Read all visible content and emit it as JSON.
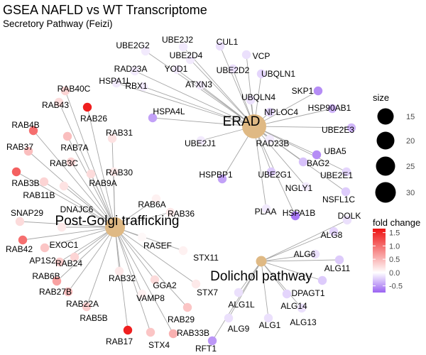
{
  "title": "GSEA NAFLD vs WT Transcriptome",
  "subtitle": "Secretory Pathway (Feizi)",
  "legend": {
    "size_title": "size",
    "size_values": [
      15,
      20,
      25,
      30
    ],
    "color_title": "fold change",
    "color_ticks": [
      1.5,
      1.0,
      0.5,
      0.0,
      -0.5
    ],
    "color_tick_labels": [
      "1.5",
      "1.0",
      "0.5",
      "0.0",
      "-0.5"
    ],
    "color_range": [
      -0.75,
      1.65
    ],
    "colors": {
      "low": "#9a63f2",
      "mid": "#ffffff",
      "high": "#ee1111"
    }
  },
  "chart_data": {
    "type": "network",
    "hubs": [
      {
        "id": "ERAD",
        "label": "ERAD",
        "size": 25,
        "color": "#dfb984"
      },
      {
        "id": "PGT",
        "label": "Post-Golgi trafficking",
        "size": 22,
        "color": "#dfb984"
      },
      {
        "id": "DOL",
        "label": "Dolichol pathway",
        "size": 14,
        "color": "#dfb984"
      }
    ],
    "genes": [
      {
        "label": "UBE2G2",
        "hub": "ERAD",
        "fc": -0.1
      },
      {
        "label": "UBE2J2",
        "hub": "ERAD",
        "fc": -0.1
      },
      {
        "label": "CUL1",
        "hub": "ERAD",
        "fc": -0.15
      },
      {
        "label": "UBE2D4",
        "hub": "ERAD",
        "fc": -0.1
      },
      {
        "label": "VCP",
        "hub": "ERAD",
        "fc": -0.15
      },
      {
        "label": "YOD1",
        "hub": "ERAD",
        "fc": -0.1
      },
      {
        "label": "UBE2D2",
        "hub": "ERAD",
        "fc": -0.15
      },
      {
        "label": "UBQLN1",
        "hub": "ERAD",
        "fc": -0.2
      },
      {
        "label": "RAD23A",
        "hub": "ERAD",
        "fc": -0.1
      },
      {
        "label": "HSPA1L",
        "hub": "ERAD",
        "fc": -0.1
      },
      {
        "label": "RBX1",
        "hub": "ERAD",
        "fc": -0.1
      },
      {
        "label": "ATXN3",
        "hub": "ERAD",
        "fc": -0.1
      },
      {
        "label": "UBQLN4",
        "hub": "ERAD",
        "fc": -0.15
      },
      {
        "label": "SKP1",
        "hub": "ERAD",
        "fc": -0.55
      },
      {
        "label": "HSPA4L",
        "hub": "ERAD",
        "fc": -0.45
      },
      {
        "label": "NPLOC4",
        "hub": "ERAD",
        "fc": -0.2
      },
      {
        "label": "HSP90AB1",
        "hub": "ERAD",
        "fc": -0.35
      },
      {
        "label": "UBE2E3",
        "hub": "ERAD",
        "fc": -0.35
      },
      {
        "label": "UBE2J1",
        "hub": "ERAD",
        "fc": -0.1
      },
      {
        "label": "RAD23B",
        "hub": "ERAD",
        "fc": -0.1
      },
      {
        "label": "UBA5",
        "hub": "ERAD",
        "fc": -0.55
      },
      {
        "label": "BAG2",
        "hub": "ERAD",
        "fc": -0.3
      },
      {
        "label": "UBE2E1",
        "hub": "ERAD",
        "fc": -0.2
      },
      {
        "label": "HSPBP1",
        "hub": "ERAD",
        "fc": -0.45
      },
      {
        "label": "UBE2G1",
        "hub": "ERAD",
        "fc": -0.25
      },
      {
        "label": "NGLY1",
        "hub": "ERAD",
        "fc": -0.1
      },
      {
        "label": "NSFL1C",
        "hub": "ERAD",
        "fc": -0.25
      },
      {
        "label": "PLAA",
        "hub": "ERAD",
        "fc": -0.1
      },
      {
        "label": "HSPA1B",
        "hub": "ERAD",
        "fc": -0.65
      },
      {
        "label": "RAB40C",
        "hub": "PGT",
        "fc": 0.3
      },
      {
        "label": "RAB43",
        "hub": "PGT",
        "fc": 0.25
      },
      {
        "label": "RAB26",
        "hub": "PGT",
        "fc": 1.55
      },
      {
        "label": "RAB4B",
        "hub": "PGT",
        "fc": 1.0
      },
      {
        "label": "RAB31",
        "hub": "PGT",
        "fc": 0.2
      },
      {
        "label": "RAB7A",
        "hub": "PGT",
        "fc": 0.45
      },
      {
        "label": "RAB37",
        "hub": "PGT",
        "fc": 0.45
      },
      {
        "label": "RAB3C",
        "hub": "PGT",
        "fc": 0.3
      },
      {
        "label": "RAB30",
        "hub": "PGT",
        "fc": 0.15
      },
      {
        "label": "RAB9A",
        "hub": "PGT",
        "fc": 0.25
      },
      {
        "label": "RAB3B",
        "hub": "PGT",
        "fc": 1.1
      },
      {
        "label": "RAB11B",
        "hub": "PGT",
        "fc": 0.3
      },
      {
        "label": "DNAJC6",
        "hub": "PGT",
        "fc": 0.2
      },
      {
        "label": "RAB6A",
        "hub": "PGT",
        "fc": 0.1
      },
      {
        "label": "SNAP29",
        "hub": "PGT",
        "fc": 0.25
      },
      {
        "label": "RAB36",
        "hub": "PGT",
        "fc": 0.15
      },
      {
        "label": "EXOC1",
        "hub": "PGT",
        "fc": 0.15
      },
      {
        "label": "RAB42",
        "hub": "PGT",
        "fc": 1.0
      },
      {
        "label": "AP1S2",
        "hub": "PGT",
        "fc": 0.4
      },
      {
        "label": "RASEF",
        "hub": "PGT",
        "fc": 0.05
      },
      {
        "label": "RAB6B",
        "hub": "PGT",
        "fc": 0.35
      },
      {
        "label": "RAB24",
        "hub": "PGT",
        "fc": 0.3
      },
      {
        "label": "STX11",
        "hub": "PGT",
        "fc": 0.1
      },
      {
        "label": "RAB32",
        "hub": "PGT",
        "fc": 0.15
      },
      {
        "label": "RAB27B",
        "hub": "PGT",
        "fc": 0.65
      },
      {
        "label": "GGA2",
        "hub": "PGT",
        "fc": 0.25
      },
      {
        "label": "STX7",
        "hub": "PGT",
        "fc": 0.15
      },
      {
        "label": "RAB22A",
        "hub": "PGT",
        "fc": 0.45
      },
      {
        "label": "VAMP8",
        "hub": "PGT",
        "fc": 0.1
      },
      {
        "label": "RAB5B",
        "hub": "PGT",
        "fc": 0.35
      },
      {
        "label": "RAB29",
        "hub": "PGT",
        "fc": 0.4
      },
      {
        "label": "RAB17",
        "hub": "PGT",
        "fc": 1.55
      },
      {
        "label": "STX4",
        "hub": "PGT",
        "fc": 0.4
      },
      {
        "label": "RAB33B",
        "hub": "PGT",
        "fc": 0.55
      },
      {
        "label": "DOLK",
        "hub": "DOL",
        "fc": -0.15
      },
      {
        "label": "ALG8",
        "hub": "DOL",
        "fc": -0.2
      },
      {
        "label": "ALG6",
        "hub": "DOL",
        "fc": -0.15
      },
      {
        "label": "ALG11",
        "hub": "DOL",
        "fc": -0.25
      },
      {
        "label": "DPAGT1",
        "hub": "DOL",
        "fc": -0.25
      },
      {
        "label": "ALG1L",
        "hub": "DOL",
        "fc": -0.15
      },
      {
        "label": "ALG14",
        "hub": "DOL",
        "fc": -0.2
      },
      {
        "label": "ALG13",
        "hub": "DOL",
        "fc": -0.15
      },
      {
        "label": "ALG9",
        "hub": "DOL",
        "fc": -0.15
      },
      {
        "label": "ALG1",
        "hub": "DOL",
        "fc": -0.15
      },
      {
        "label": "RFT1",
        "hub": "DOL",
        "fc": -0.5
      }
    ]
  }
}
